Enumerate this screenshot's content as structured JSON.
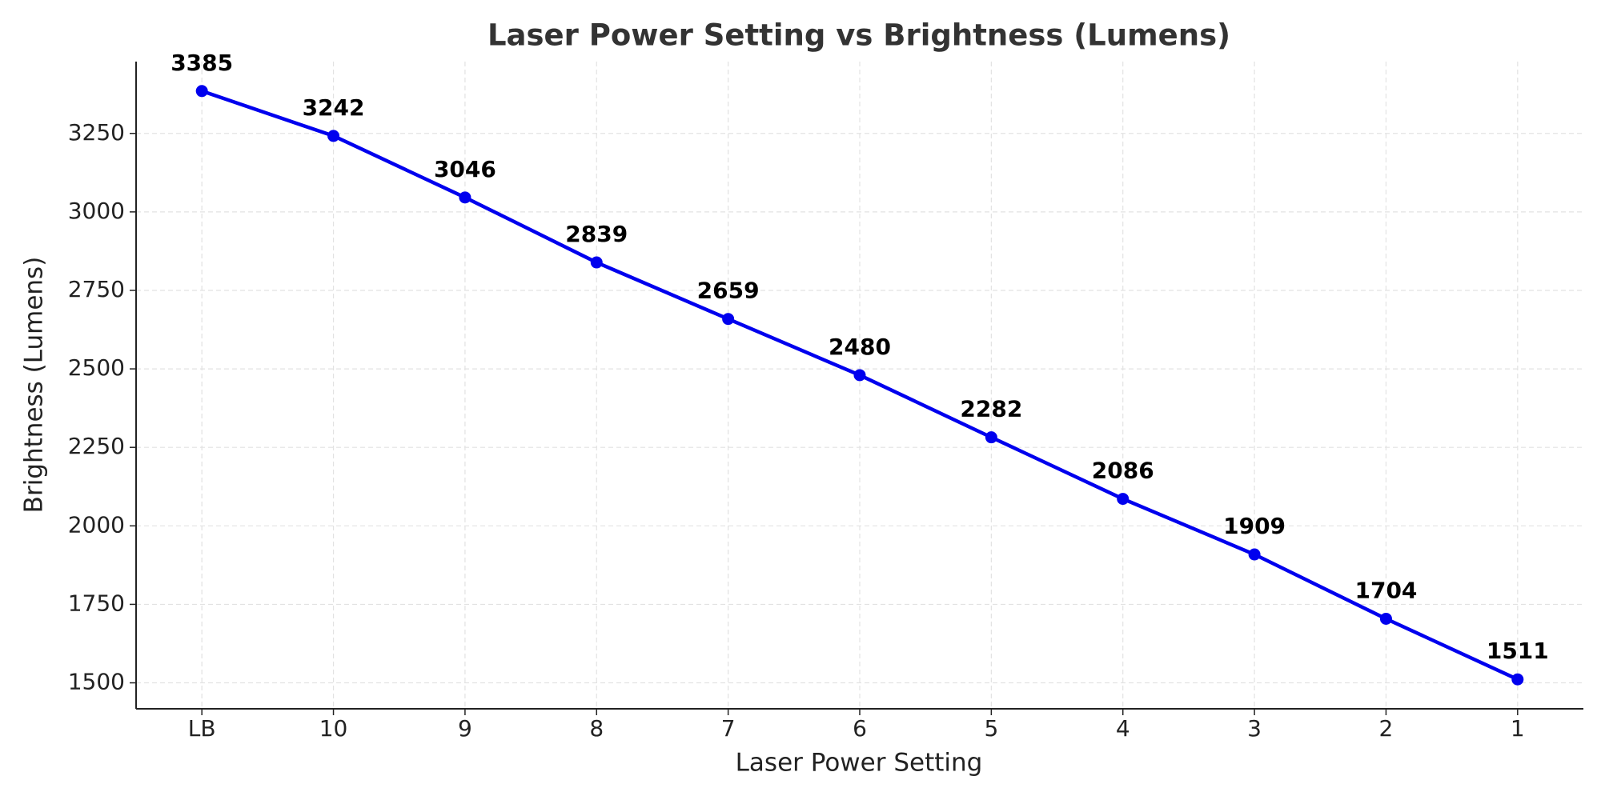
{
  "chart_data": {
    "type": "line",
    "title": "Laser Power Setting vs Brightness (Lumens)",
    "x_label": "Laser Power Setting",
    "y_label": "Brightness (Lumens)",
    "categories": [
      "LB",
      "10",
      "9",
      "8",
      "7",
      "6",
      "5",
      "4",
      "3",
      "2",
      "1"
    ],
    "values": [
      3385,
      3242,
      3046,
      2839,
      2659,
      2480,
      2282,
      2086,
      1909,
      1704,
      1511
    ],
    "color": "#0000ee",
    "ylim": [
      1417.3,
      3478.7
    ],
    "yticks": [
      1500,
      1750,
      2000,
      2250,
      2500,
      2750,
      3000,
      3250
    ],
    "grid": true,
    "markers": true,
    "data_labels": true
  }
}
